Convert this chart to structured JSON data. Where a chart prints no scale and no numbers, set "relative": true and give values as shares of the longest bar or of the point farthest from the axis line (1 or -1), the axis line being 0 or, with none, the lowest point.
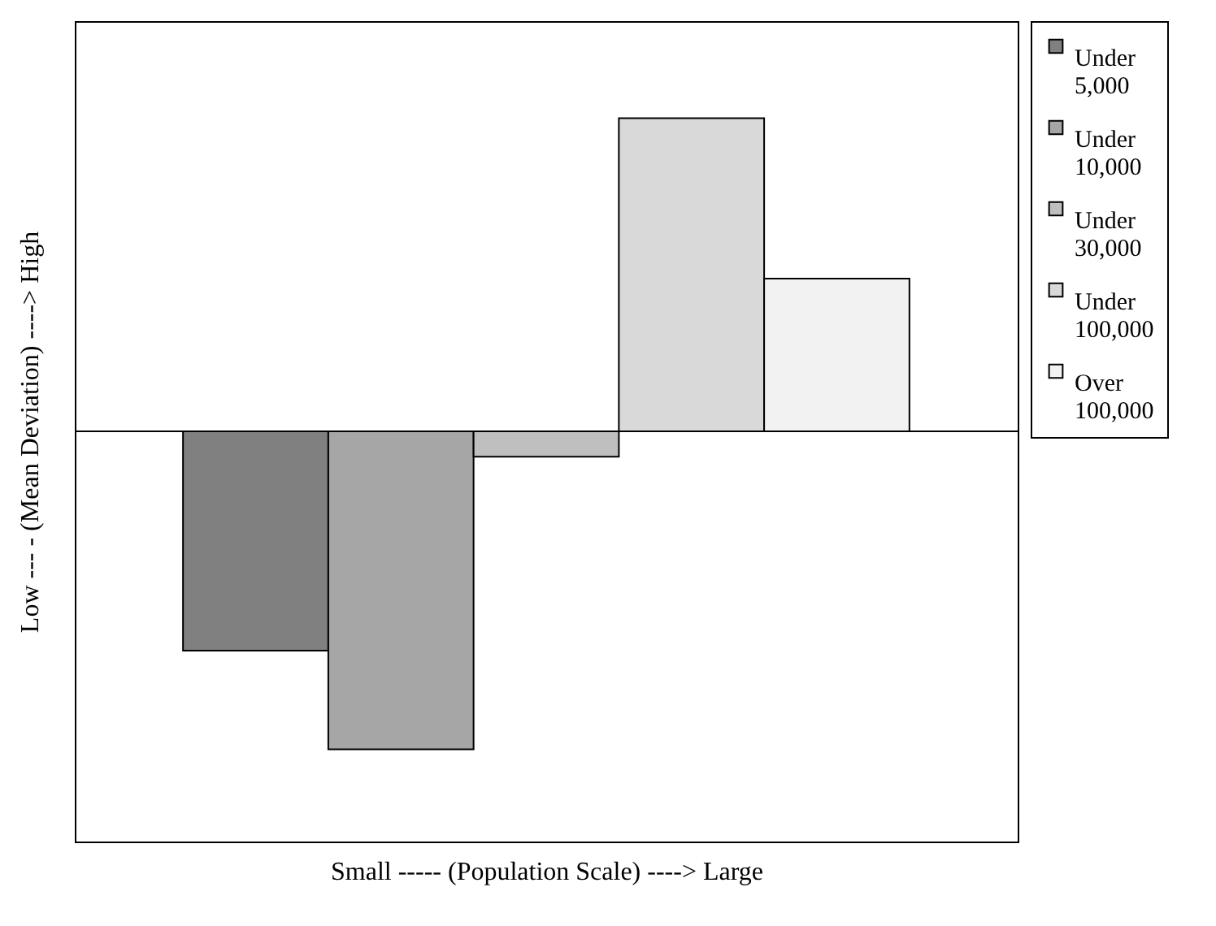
{
  "chart_data": {
    "type": "bar",
    "relative": true,
    "xlabel": "Small ----- (Population Scale) ----> Large",
    "ylabel": "Low --- - (Mean Deviation) ----> High",
    "categories": [
      null
    ],
    "legend": "right",
    "series": [
      {
        "name": "Under 5,000",
        "color": "#808080",
        "values": [
          -0.69
        ]
      },
      {
        "name": "Under 10,000",
        "color": "#a6a6a6",
        "values": [
          -1
        ]
      },
      {
        "name": "Under 30,000",
        "color": "#bfbfbf",
        "values": [
          -0.08
        ]
      },
      {
        "name": "Under 100,000",
        "color": "#d9d9d9",
        "values": [
          0.985
        ]
      },
      {
        "name": "Over 100,000",
        "color": "#f2f2f2",
        "values": [
          0.48
        ]
      }
    ]
  }
}
